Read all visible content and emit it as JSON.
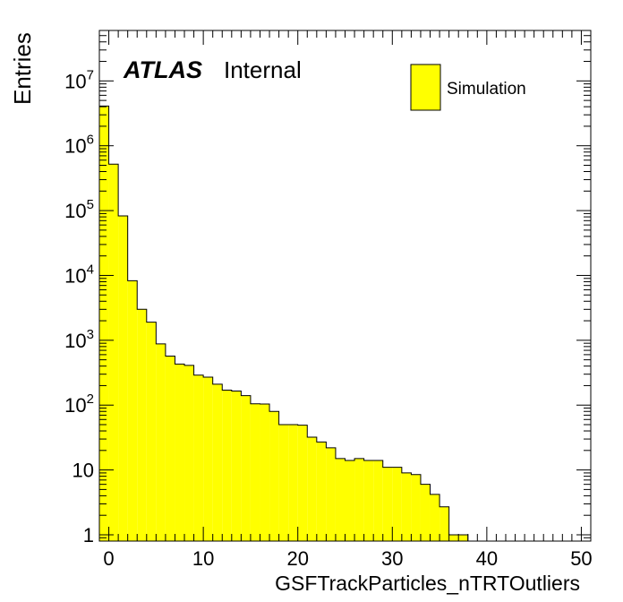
{
  "chart_data": {
    "type": "bar",
    "style": "histogram",
    "xlabel": "GSFTrackParticles_nTRTOutliers",
    "ylabel": "Entries",
    "yscale": "log",
    "xlim": [
      -1,
      51
    ],
    "ylim": [
      0.8,
      60000000
    ],
    "bin_width": 1,
    "x_tick_labels": [
      "0",
      "10",
      "20",
      "30",
      "40",
      "50"
    ],
    "y_tick_labels": [
      {
        "base": "1",
        "exp": ""
      },
      {
        "base": "10",
        "exp": ""
      },
      {
        "base": "10",
        "exp": "2"
      },
      {
        "base": "10",
        "exp": "3"
      },
      {
        "base": "10",
        "exp": "4"
      },
      {
        "base": "10",
        "exp": "5"
      },
      {
        "base": "10",
        "exp": "6"
      },
      {
        "base": "10",
        "exp": "7"
      }
    ],
    "bins": [
      {
        "x": -1,
        "value": 4100000
      },
      {
        "x": 0,
        "value": 520000
      },
      {
        "x": 1,
        "value": 83000
      },
      {
        "x": 2,
        "value": 8300
      },
      {
        "x": 3,
        "value": 3000
      },
      {
        "x": 4,
        "value": 1900
      },
      {
        "x": 5,
        "value": 880
      },
      {
        "x": 6,
        "value": 570
      },
      {
        "x": 7,
        "value": 430
      },
      {
        "x": 8,
        "value": 410
      },
      {
        "x": 9,
        "value": 290
      },
      {
        "x": 10,
        "value": 270
      },
      {
        "x": 11,
        "value": 210
      },
      {
        "x": 12,
        "value": 170
      },
      {
        "x": 13,
        "value": 165
      },
      {
        "x": 14,
        "value": 140
      },
      {
        "x": 15,
        "value": 105
      },
      {
        "x": 16,
        "value": 104
      },
      {
        "x": 17,
        "value": 80
      },
      {
        "x": 18,
        "value": 50
      },
      {
        "x": 19,
        "value": 50
      },
      {
        "x": 20,
        "value": 49
      },
      {
        "x": 21,
        "value": 32
      },
      {
        "x": 22,
        "value": 27
      },
      {
        "x": 23,
        "value": 22
      },
      {
        "x": 24,
        "value": 15
      },
      {
        "x": 25,
        "value": 14
      },
      {
        "x": 26,
        "value": 15
      },
      {
        "x": 27,
        "value": 14
      },
      {
        "x": 28,
        "value": 14
      },
      {
        "x": 29,
        "value": 11
      },
      {
        "x": 30,
        "value": 11
      },
      {
        "x": 31,
        "value": 9
      },
      {
        "x": 32,
        "value": 8.5
      },
      {
        "x": 33,
        "value": 6
      },
      {
        "x": 34,
        "value": 4.2
      },
      {
        "x": 35,
        "value": 2.7
      },
      {
        "x": 36,
        "value": 1
      },
      {
        "x": 37,
        "value": 1
      }
    ],
    "series": [
      {
        "name": "Simulation",
        "color": "#ffff00"
      }
    ],
    "legend_position": "top-right",
    "annotation": {
      "atlas": "ATLAS",
      "label": "Internal"
    },
    "colors": {
      "fill": "#ffff00",
      "line": "#000000"
    }
  }
}
